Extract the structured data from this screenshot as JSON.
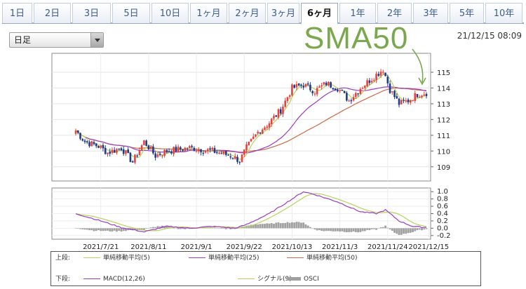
{
  "tabs": [
    {
      "label": "1日",
      "active": false
    },
    {
      "label": "2日",
      "active": false
    },
    {
      "label": "3日",
      "active": false
    },
    {
      "label": "5日",
      "active": false
    },
    {
      "label": "10日",
      "active": false
    },
    {
      "label": "1ヶ月",
      "active": false
    },
    {
      "label": "2ヶ月",
      "active": false
    },
    {
      "label": "3ヶ月",
      "active": false
    },
    {
      "label": "6ヶ月",
      "active": true
    },
    {
      "label": "1年",
      "active": false
    },
    {
      "label": "2年",
      "active": false
    },
    {
      "label": "3年",
      "active": false
    },
    {
      "label": "5年",
      "active": false
    },
    {
      "label": "10年",
      "active": false
    }
  ],
  "period_select": {
    "value": "日足"
  },
  "timestamp": "21/12/15 08:09",
  "annotation": "SMA50",
  "colors": {
    "up": "#e8413b",
    "down": "#1e3a8a",
    "sma5": "#b5d35b",
    "sma25": "#9b3dbf",
    "sma50": "#cc6a45",
    "macd": "#9b3dbf",
    "signal": "#b5d35b",
    "osci": "#a0a0a0",
    "annotation": "#7ba84f"
  },
  "price_axis": {
    "ticks": [
      "115",
      "114",
      "113",
      "112",
      "111",
      "110",
      "109"
    ],
    "range": [
      108.1,
      116.2
    ]
  },
  "macd_axis": {
    "ticks": [
      "1.0",
      "0.8",
      "0.6",
      "0.4",
      "0.2",
      "0.0",
      "-0.2"
    ],
    "range": [
      -0.3,
      1.1
    ]
  },
  "dates": [
    "2021/7/21",
    "2021/8/11",
    "2021/9/1",
    "2021/9/22",
    "2021/10/13",
    "2021/11/3",
    "2021/11/24",
    "2021/12/15"
  ],
  "legend": {
    "upper_label": "上段:",
    "lower_label": "下段:",
    "upper": [
      {
        "label": "単純移動平均(5)",
        "color": "#b5d35b"
      },
      {
        "label": "単純移動平均(25)",
        "color": "#9b3dbf"
      },
      {
        "label": "単純移動平均(50)",
        "color": "#cc6a45"
      }
    ],
    "lower": [
      {
        "label": "MACD(12,26)",
        "color": "#9b3dbf",
        "kind": "line"
      },
      {
        "label": "シグナル(9)",
        "color": "#b5d35b",
        "kind": "line"
      },
      {
        "label": "OSCI",
        "color": "#a0a0a0",
        "kind": "bar"
      }
    ]
  },
  "chart_data": {
    "type": "candlestick",
    "price_anchors": [
      [
        0,
        111.3
      ],
      [
        4,
        110.6
      ],
      [
        10,
        110.3
      ],
      [
        14,
        109.9
      ],
      [
        20,
        110.2
      ],
      [
        25,
        109.3
      ],
      [
        30,
        110.6
      ],
      [
        35,
        109.7
      ],
      [
        40,
        110.0
      ],
      [
        50,
        110.2
      ],
      [
        60,
        110.0
      ],
      [
        68,
        109.7
      ],
      [
        72,
        109.4
      ],
      [
        75,
        110.2
      ],
      [
        80,
        111.2
      ],
      [
        85,
        111.8
      ],
      [
        90,
        112.6
      ],
      [
        95,
        114.0
      ],
      [
        100,
        114.2
      ],
      [
        105,
        113.8
      ],
      [
        110,
        114.3
      ],
      [
        115,
        114.0
      ],
      [
        120,
        113.2
      ],
      [
        125,
        114.0
      ],
      [
        130,
        114.6
      ],
      [
        135,
        115.2
      ],
      [
        138,
        113.9
      ],
      [
        142,
        113.0
      ],
      [
        146,
        113.2
      ],
      [
        150,
        113.6
      ],
      [
        154,
        113.7
      ]
    ],
    "macd_anchors": [
      [
        0,
        0.4
      ],
      [
        10,
        0.22
      ],
      [
        20,
        0.02
      ],
      [
        30,
        -0.1
      ],
      [
        40,
        0.05
      ],
      [
        50,
        0.0
      ],
      [
        60,
        0.05
      ],
      [
        70,
        0.0
      ],
      [
        75,
        0.1
      ],
      [
        85,
        0.4
      ],
      [
        95,
        0.8
      ],
      [
        100,
        1.0
      ],
      [
        105,
        0.92
      ],
      [
        115,
        0.72
      ],
      [
        125,
        0.45
      ],
      [
        132,
        0.4
      ],
      [
        136,
        0.5
      ],
      [
        142,
        0.2
      ],
      [
        148,
        0.05
      ],
      [
        154,
        0.02
      ]
    ]
  }
}
